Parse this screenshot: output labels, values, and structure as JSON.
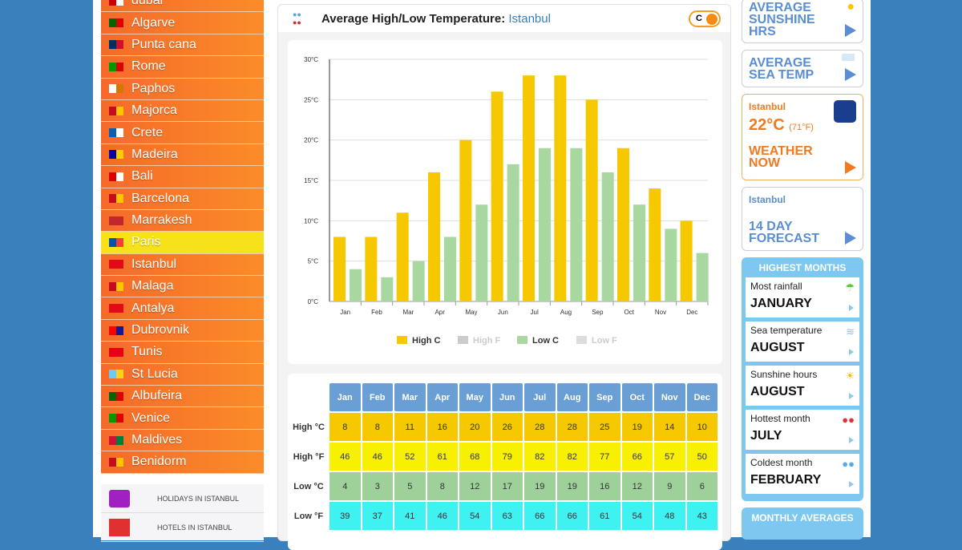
{
  "sidebar": {
    "cities": [
      {
        "name": "dubai",
        "flag": [
          "#c00",
          "#fff"
        ]
      },
      {
        "name": "Algarve",
        "flag": [
          "#060",
          "#d00"
        ]
      },
      {
        "name": "Punta cana",
        "flag": [
          "#002d62",
          "#ce1126"
        ]
      },
      {
        "name": "Rome",
        "flag": [
          "#090",
          "#d00"
        ]
      },
      {
        "name": "Paphos",
        "flag": [
          "#fff",
          "#d57800"
        ]
      },
      {
        "name": "Majorca",
        "flag": [
          "#c60b1e",
          "#ffc400"
        ]
      },
      {
        "name": "Crete",
        "flag": [
          "#0d5eaf",
          "#fff"
        ]
      },
      {
        "name": "Madeira",
        "flag": [
          "#00a",
          "#fc0"
        ]
      },
      {
        "name": "Bali",
        "flag": [
          "#d00",
          "#fff"
        ]
      },
      {
        "name": "Barcelona",
        "flag": [
          "#c60b1e",
          "#ffc400"
        ]
      },
      {
        "name": "Marrakesh",
        "flag": [
          "#c1272d",
          "#c1272d"
        ]
      },
      {
        "name": "Paris",
        "flag": [
          "#0055a4",
          "#ef4135"
        ],
        "selected": true
      },
      {
        "name": "Istanbul",
        "flag": [
          "#e30a17",
          "#e30a17"
        ]
      },
      {
        "name": "Malaga",
        "flag": [
          "#c60b1e",
          "#ffc400"
        ]
      },
      {
        "name": "Antalya",
        "flag": [
          "#e30a17",
          "#e30a17"
        ]
      },
      {
        "name": "Dubrovnik",
        "flag": [
          "#f00",
          "#171796"
        ]
      },
      {
        "name": "Tunis",
        "flag": [
          "#e70013",
          "#e70013"
        ]
      },
      {
        "name": "St Lucia",
        "flag": [
          "#6cf",
          "#fcd116"
        ]
      },
      {
        "name": "Albufeira",
        "flag": [
          "#060",
          "#d00"
        ]
      },
      {
        "name": "Venice",
        "flag": [
          "#090",
          "#d00"
        ]
      },
      {
        "name": "Maldives",
        "flag": [
          "#d21034",
          "#007e3a"
        ]
      },
      {
        "name": "Benidorm",
        "flag": [
          "#c60b1e",
          "#ffc400"
        ]
      }
    ],
    "links": [
      {
        "label": "HOLIDAYS IN ISTANBUL",
        "icon": "suitcase-icon",
        "color": "#a020c0"
      },
      {
        "label": "HOTELS IN ISTANBUL",
        "icon": "hotel-icon",
        "color": "#e03030"
      }
    ]
  },
  "header": {
    "title": "Average High/Low Temperature:",
    "city": "Istanbul",
    "unit_toggle": "C"
  },
  "chart_data": {
    "type": "bar",
    "categories": [
      "Jan",
      "Feb",
      "Mar",
      "Apr",
      "May",
      "Jun",
      "Jul",
      "Aug",
      "Sep",
      "Oct",
      "Nov",
      "Dec"
    ],
    "series": [
      {
        "name": "High C",
        "values": [
          8,
          8,
          11,
          16,
          20,
          26,
          28,
          28,
          25,
          19,
          14,
          10
        ],
        "color": "#f5c800",
        "visible": true
      },
      {
        "name": "High F",
        "values": [
          46,
          46,
          52,
          61,
          68,
          79,
          82,
          82,
          77,
          66,
          57,
          50
        ],
        "color": "#cccccc",
        "visible": false
      },
      {
        "name": "Low C",
        "values": [
          4,
          3,
          5,
          8,
          12,
          17,
          19,
          19,
          16,
          12,
          9,
          6
        ],
        "color": "#a8d8a0",
        "visible": true
      },
      {
        "name": "Low F",
        "values": [
          39,
          37,
          41,
          46,
          54,
          63,
          66,
          66,
          61,
          54,
          48,
          43
        ],
        "color": "#dddddd",
        "visible": false
      }
    ],
    "ylim": [
      0,
      30
    ],
    "yticks": [
      "0°C",
      "5°C",
      "10°C",
      "15°C",
      "20°C",
      "25°C",
      "30°C"
    ],
    "grid": true,
    "legend": "bottom"
  },
  "table": {
    "months": [
      "Jan",
      "Feb",
      "Mar",
      "Apr",
      "May",
      "Jun",
      "Jul",
      "Aug",
      "Sep",
      "Oct",
      "Nov",
      "Dec"
    ],
    "rows": [
      {
        "label": "High °C",
        "values": [
          "8",
          "8",
          "11",
          "16",
          "20",
          "26",
          "28",
          "28",
          "25",
          "19",
          "14",
          "10"
        ]
      },
      {
        "label": "High °F",
        "values": [
          "46",
          "46",
          "52",
          "61",
          "68",
          "79",
          "82",
          "82",
          "77",
          "66",
          "57",
          "50"
        ]
      },
      {
        "label": "Low °C",
        "values": [
          "4",
          "3",
          "5",
          "8",
          "12",
          "17",
          "19",
          "19",
          "16",
          "12",
          "9",
          "6"
        ]
      },
      {
        "label": "Low °F",
        "values": [
          "39",
          "37",
          "41",
          "46",
          "54",
          "63",
          "66",
          "66",
          "61",
          "54",
          "48",
          "43"
        ]
      }
    ]
  },
  "right": {
    "sunshine": "AVERAGE SUNSHINE HRS",
    "sea": "AVERAGE SEA TEMP",
    "weather": {
      "city": "Istanbul",
      "temp": "22°C",
      "temp_f": "(71°F)",
      "label": "WEATHER NOW"
    },
    "forecast": {
      "city": "Istanbul",
      "label": "14 DAY FORECAST"
    },
    "highest_title": "HIGHEST MONTHS",
    "highest": [
      {
        "label": "Most rainfall",
        "value": "JANUARY",
        "icon": "umbrella-icon"
      },
      {
        "label": "Sea temperature",
        "value": "AUGUST",
        "icon": "waves-icon"
      },
      {
        "label": "Sunshine hours",
        "value": "AUGUST",
        "icon": "sun-icon"
      },
      {
        "label": "Hottest month",
        "value": "JULY",
        "icon": "hot-thermometer-icon"
      },
      {
        "label": "Coldest month",
        "value": "FEBRUARY",
        "icon": "cold-thermometer-icon"
      }
    ],
    "monthly_title": "MONTHLY AVERAGES"
  }
}
